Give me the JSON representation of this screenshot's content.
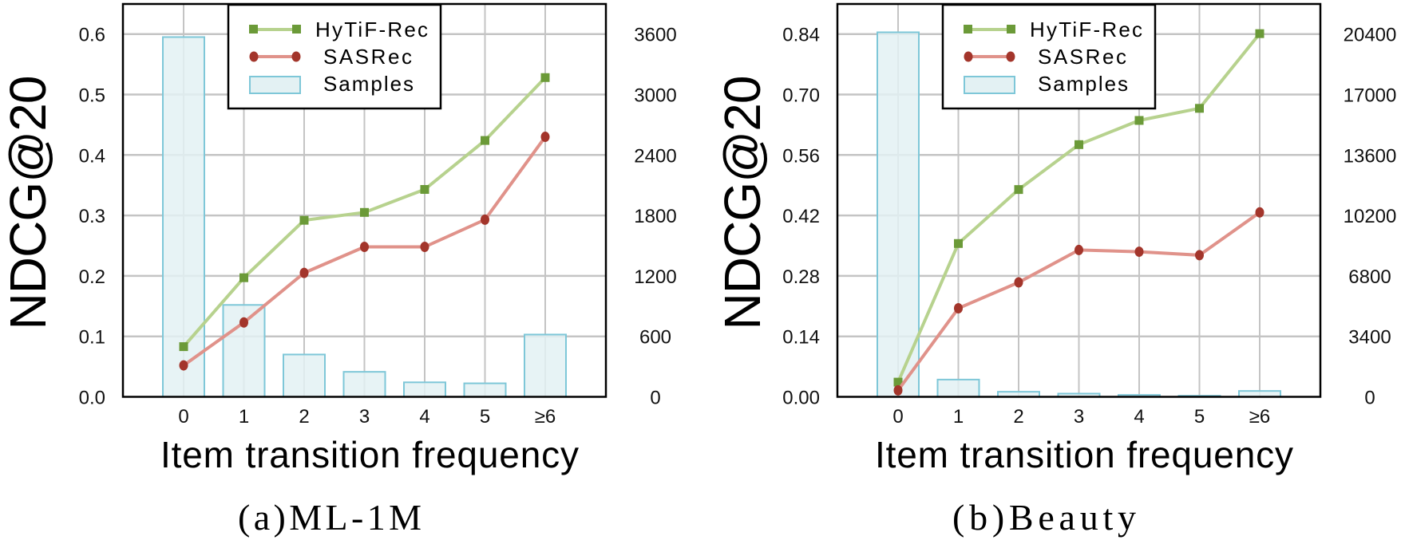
{
  "colors": {
    "hytif_line": "#b7d28e",
    "hytif_marker": "#6b9a38",
    "sasrec_line": "#e0928a",
    "sasrec_marker": "#a3352b",
    "bar_fill": "#e3f1f3",
    "bar_stroke": "#7ec7d8",
    "grid": "#c4c4c4"
  },
  "chart_data": [
    {
      "type": "bar+line",
      "title": "(a)ML-1M",
      "xlabel": "Item transition frequency",
      "ylabel": "NDCG@20",
      "categories": [
        "0",
        "1",
        "2",
        "3",
        "4",
        "5",
        "≥6"
      ],
      "ylim": [
        0,
        0.6
      ],
      "yticks": [
        "0.0",
        "0.1",
        "0.2",
        "0.3",
        "0.4",
        "0.5",
        "0.6"
      ],
      "y2lim": [
        0,
        3600
      ],
      "y2ticks": [
        "0",
        "600",
        "1200",
        "1800",
        "2400",
        "3000",
        "3600"
      ],
      "grid": true,
      "legend": "top-center",
      "series": [
        {
          "name": "HyTiF-Rec",
          "type": "line",
          "axis": "left",
          "values": [
            0.083,
            0.197,
            0.292,
            0.305,
            0.343,
            0.424,
            0.528
          ]
        },
        {
          "name": "SASRec",
          "type": "line",
          "axis": "left",
          "values": [
            0.052,
            0.123,
            0.205,
            0.248,
            0.248,
            0.293,
            0.43
          ]
        },
        {
          "name": "Samples",
          "type": "bar",
          "axis": "right",
          "values": [
            3570,
            912,
            420,
            248,
            144,
            134,
            618
          ]
        }
      ]
    },
    {
      "type": "bar+line",
      "title": "(b)Beauty",
      "xlabel": "Item transition frequency",
      "ylabel": "NDCG@20",
      "categories": [
        "0",
        "1",
        "2",
        "3",
        "4",
        "5",
        "≥6"
      ],
      "ylim": [
        0,
        0.84
      ],
      "yticks": [
        "0.00",
        "0.14",
        "0.28",
        "0.42",
        "0.56",
        "0.70",
        "0.84"
      ],
      "y2lim": [
        0,
        20400
      ],
      "y2ticks": [
        "0",
        "3400",
        "6800",
        "10200",
        "13600",
        "17000",
        "20400"
      ],
      "grid": true,
      "legend": "top-center",
      "series": [
        {
          "name": "HyTiF-Rec",
          "type": "line",
          "axis": "left",
          "values": [
            0.034,
            0.355,
            0.48,
            0.584,
            0.64,
            0.668,
            0.841
          ]
        },
        {
          "name": "SASRec",
          "type": "line",
          "axis": "left",
          "values": [
            0.015,
            0.205,
            0.265,
            0.34,
            0.336,
            0.328,
            0.427
          ]
        },
        {
          "name": "Samples",
          "type": "bar",
          "axis": "right",
          "values": [
            20500,
            970,
            285,
            180,
            105,
            60,
            330
          ]
        }
      ]
    }
  ]
}
